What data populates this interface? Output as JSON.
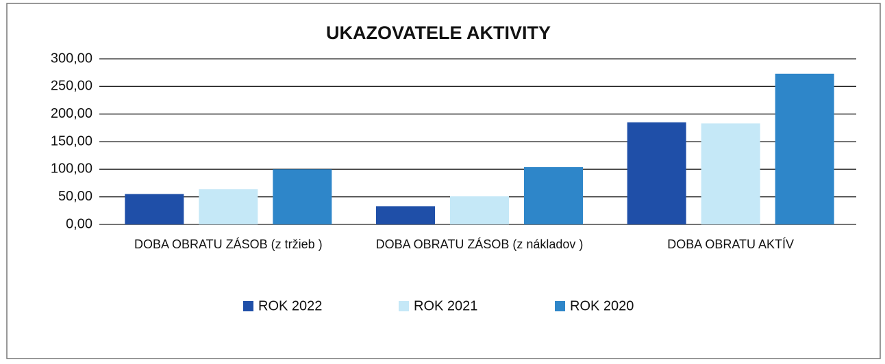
{
  "chart_data": {
    "type": "bar",
    "title": "UKAZOVATELE AKTIVITY",
    "categories": [
      "DOBA OBRATU ZÁSOB (z tržieb )",
      "DOBA OBRATU ZÁSOB (z nákladov )",
      "DOBA OBRATU AKTÍV"
    ],
    "series": [
      {
        "name": "ROK 2022",
        "color": "#1f4fa8",
        "values": [
          55,
          33,
          185
        ]
      },
      {
        "name": "ROK 2021",
        "color": "#c5e8f7",
        "values": [
          64,
          51,
          183
        ]
      },
      {
        "name": "ROK 2020",
        "color": "#2e86c9",
        "values": [
          100,
          104,
          273
        ]
      }
    ],
    "ylim": [
      0,
      300
    ],
    "yticks": [
      {
        "value": 0,
        "label": "0,00"
      },
      {
        "value": 50,
        "label": "50,00"
      },
      {
        "value": 100,
        "label": "100,00"
      },
      {
        "value": 150,
        "label": "150,00"
      },
      {
        "value": 200,
        "label": "200,00"
      },
      {
        "value": 250,
        "label": "250,00"
      },
      {
        "value": 300,
        "label": "300,00"
      }
    ],
    "grid": true,
    "legend": "bottom"
  }
}
